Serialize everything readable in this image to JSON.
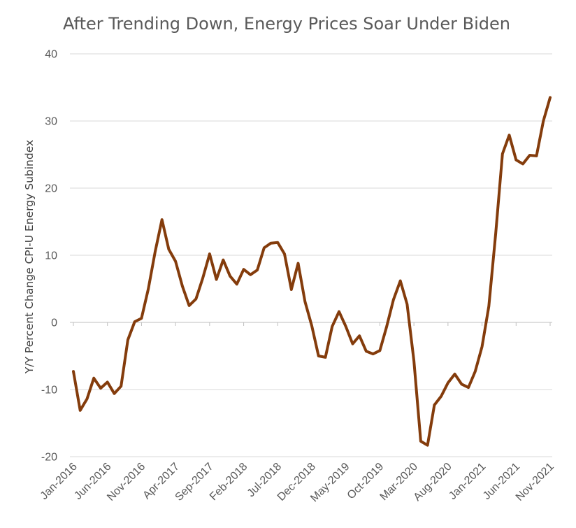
{
  "chart_data": {
    "type": "line",
    "title": "After Trending Down, Energy Prices Soar Under Biden",
    "xlabel": "",
    "ylabel": "Y/Y Percent Change CPI-U Energy Subindex",
    "ylim": [
      -20,
      40
    ],
    "y_ticks": [
      "40",
      "30",
      "20",
      "10",
      "0",
      "-10",
      "-20"
    ],
    "grid": true,
    "legend": "none",
    "line_color": "#843C0C",
    "x_tick_labels": [
      "Jan-2016",
      "Jun-2016",
      "Nov-2016",
      "Apr-2017",
      "Sep-2017",
      "Feb-2018",
      "Jul-2018",
      "Dec-2018",
      "May-2019",
      "Oct-2019",
      "Mar-2020",
      "Aug-2020",
      "Jan-2021",
      "Jun-2021",
      "Nov-2021"
    ],
    "x": [
      "Jan-2016",
      "Feb-2016",
      "Mar-2016",
      "Apr-2016",
      "May-2016",
      "Jun-2016",
      "Jul-2016",
      "Aug-2016",
      "Sep-2016",
      "Oct-2016",
      "Nov-2016",
      "Dec-2016",
      "Jan-2017",
      "Feb-2017",
      "Mar-2017",
      "Apr-2017",
      "May-2017",
      "Jun-2017",
      "Jul-2017",
      "Aug-2017",
      "Sep-2017",
      "Oct-2017",
      "Nov-2017",
      "Dec-2017",
      "Jan-2018",
      "Feb-2018",
      "Mar-2018",
      "Apr-2018",
      "May-2018",
      "Jun-2018",
      "Jul-2018",
      "Aug-2018",
      "Sep-2018",
      "Oct-2018",
      "Nov-2018",
      "Dec-2018",
      "Jan-2019",
      "Feb-2019",
      "Mar-2019",
      "Apr-2019",
      "May-2019",
      "Jun-2019",
      "Jul-2019",
      "Aug-2019",
      "Sep-2019",
      "Oct-2019",
      "Nov-2019",
      "Dec-2019",
      "Jan-2020",
      "Feb-2020",
      "Mar-2020",
      "Apr-2020",
      "May-2020",
      "Jun-2020",
      "Jul-2020",
      "Aug-2020",
      "Sep-2020",
      "Oct-2020",
      "Nov-2020",
      "Dec-2020",
      "Jan-2021",
      "Feb-2021",
      "Mar-2021",
      "Apr-2021",
      "May-2021",
      "Jun-2021",
      "Jul-2021",
      "Aug-2021",
      "Sep-2021",
      "Oct-2021",
      "Nov-2021"
    ],
    "values": [
      -7.3,
      -13.1,
      -11.4,
      -8.3,
      -9.8,
      -8.9,
      -10.6,
      -9.5,
      -2.6,
      0.1,
      0.6,
      5.0,
      10.5,
      15.3,
      10.9,
      9.1,
      5.4,
      2.5,
      3.5,
      6.6,
      10.2,
      6.4,
      9.3,
      6.9,
      5.7,
      7.9,
      7.1,
      7.8,
      11.1,
      11.8,
      11.9,
      10.2,
      4.9,
      8.8,
      3.1,
      -0.5,
      -5.0,
      -5.2,
      -0.6,
      1.6,
      -0.6,
      -3.2,
      -2.0,
      -4.3,
      -4.7,
      -4.2,
      -0.6,
      3.4,
      6.2,
      2.7,
      -5.7,
      -17.7,
      -18.3,
      -12.3,
      -11.0,
      -9.0,
      -7.7,
      -9.2,
      -9.7,
      -7.3,
      -3.6,
      2.4,
      13.2,
      25.1,
      27.9,
      24.2,
      23.6,
      24.9,
      24.8,
      30.0,
      33.5
    ]
  }
}
